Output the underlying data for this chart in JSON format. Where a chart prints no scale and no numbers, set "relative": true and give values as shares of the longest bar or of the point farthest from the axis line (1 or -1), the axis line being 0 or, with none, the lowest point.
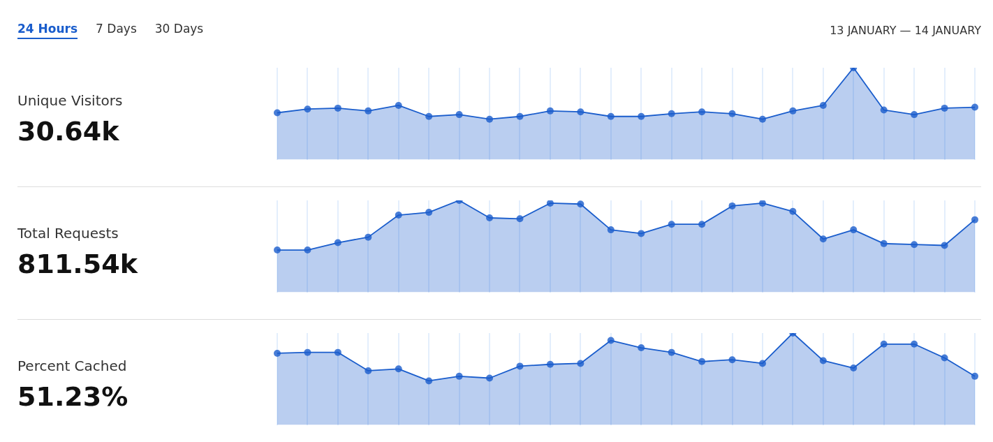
{
  "chart_data": [
    {
      "type": "other",
      "annotations": [
        "24 Hours",
        "7 Days",
        "30 Days",
        "13 JANUARY — 14 JANUARY"
      ]
    },
    {
      "type": "area",
      "annotations": [
        "Unique Visitors",
        "30.64k"
      ],
      "relative": true,
      "grid": "x",
      "marker": "circle",
      "categories": [
        null,
        null,
        null,
        null,
        null,
        null,
        null,
        null,
        null,
        null,
        null,
        null,
        null,
        null,
        null,
        null,
        null,
        null,
        null,
        null,
        null,
        null,
        null,
        null
      ],
      "series": [
        {
          "color": "#1a5dcc",
          "values": [
            0.51,
            0.55,
            0.56,
            0.53,
            0.59,
            0.47,
            0.49,
            0.44,
            0.47,
            0.53,
            0.52,
            0.47,
            0.47,
            0.5,
            0.52,
            0.5,
            0.44,
            0.53,
            0.59,
            1,
            0.54,
            0.49,
            0.56,
            0.57
          ]
        }
      ]
    },
    {
      "type": "area",
      "annotations": [
        "Total Requests",
        "811.54k"
      ],
      "relative": true,
      "grid": "x",
      "marker": "circle",
      "categories": [
        null,
        null,
        null,
        null,
        null,
        null,
        null,
        null,
        null,
        null,
        null,
        null,
        null,
        null,
        null,
        null,
        null,
        null,
        null,
        null,
        null,
        null,
        null,
        null
      ],
      "series": [
        {
          "color": "#1a5dcc",
          "values": [
            0.46,
            0.46,
            0.54,
            0.6,
            0.84,
            0.87,
            1,
            0.81,
            0.8,
            0.97,
            0.96,
            0.68,
            0.64,
            0.74,
            0.74,
            0.94,
            0.97,
            0.88,
            0.58,
            0.68,
            0.53,
            0.52,
            0.51,
            0.79
          ]
        }
      ]
    },
    {
      "type": "area",
      "annotations": [
        "Percent Cached",
        "51.23%"
      ],
      "relative": true,
      "grid": "x",
      "marker": "circle",
      "categories": [
        null,
        null,
        null,
        null,
        null,
        null,
        null,
        null,
        null,
        null,
        null,
        null,
        null,
        null,
        null,
        null,
        null,
        null,
        null,
        null,
        null,
        null,
        null,
        null
      ],
      "series": [
        {
          "color": "#1a5dcc",
          "values": [
            0.78,
            0.79,
            0.79,
            0.59,
            0.61,
            0.48,
            0.53,
            0.51,
            0.64,
            0.66,
            0.67,
            0.92,
            0.84,
            0.79,
            0.69,
            0.71,
            0.67,
            1,
            0.7,
            0.62,
            0.88,
            0.88,
            0.73,
            0.53
          ]
        }
      ]
    }
  ]
}
